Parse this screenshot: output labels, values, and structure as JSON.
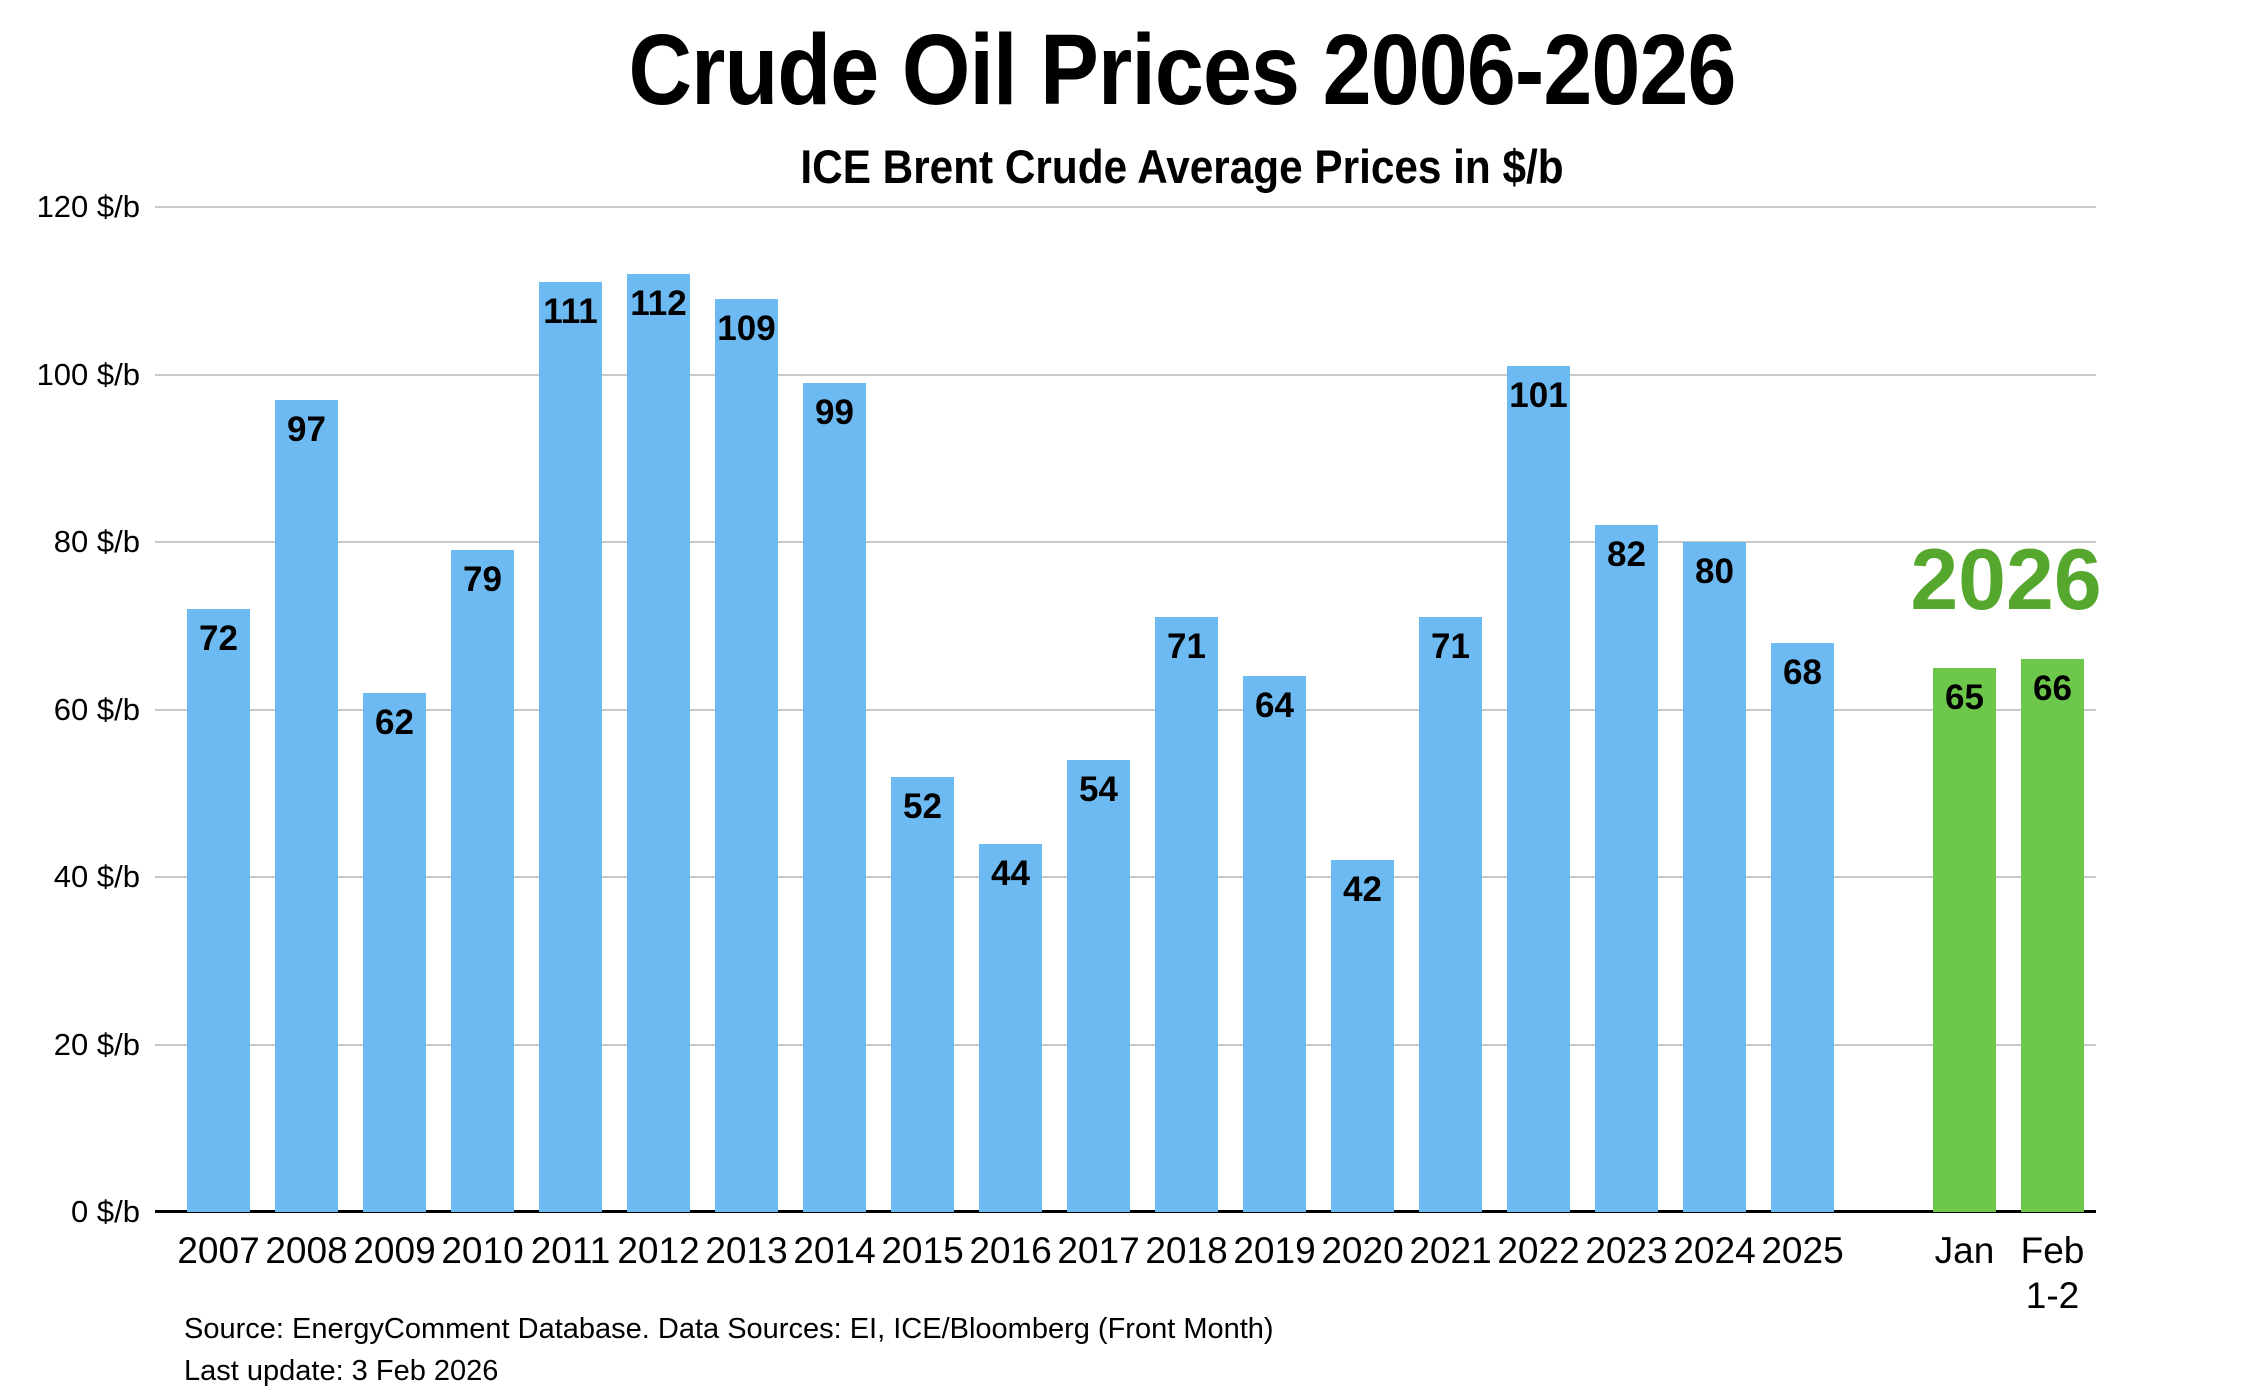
{
  "page": {
    "title": "Crude Oil Prices 2006-2026",
    "subtitle": "ICE Brent Crude Average Prices in $/b",
    "source_line1": "Source: EnergyComment Database. Data Sources: EI, ICE/Bloomberg (Front Month)",
    "source_line2": "Last update: 3 Feb 2026"
  },
  "colors": {
    "history_bar": "#6DBAF2",
    "forecast_bar": "#6DC74A",
    "forecast_annotation": "#55A72E",
    "gridline": "#C9C9C9",
    "axis_line": "#000000",
    "text": "#000000",
    "background": "#FFFFFF"
  },
  "chart_data": {
    "type": "bar",
    "title": "Crude Oil Prices 2006-2026",
    "subtitle": "ICE Brent Crude Average Prices in $/b",
    "unit": "$/b",
    "ylim": [
      0,
      120
    ],
    "y_ticks": [
      0,
      20,
      40,
      60,
      80,
      100,
      120
    ],
    "y_tick_labels": [
      "0 $/b",
      "20 $/b",
      "40 $/b",
      "60 $/b",
      "80 $/b",
      "100 $/b",
      "120 $/b"
    ],
    "grid": "horizontal",
    "legend": "none",
    "value_labels": "inside-top",
    "series": [
      {
        "name": "history",
        "color": "#6DBAF2",
        "points": [
          {
            "label": "2007",
            "value": 72
          },
          {
            "label": "2008",
            "value": 97
          },
          {
            "label": "2009",
            "value": 62
          },
          {
            "label": "2010",
            "value": 79
          },
          {
            "label": "2011",
            "value": 111
          },
          {
            "label": "2012",
            "value": 112
          },
          {
            "label": "2013",
            "value": 109
          },
          {
            "label": "2014",
            "value": 99
          },
          {
            "label": "2015",
            "value": 52
          },
          {
            "label": "2016",
            "value": 44
          },
          {
            "label": "2017",
            "value": 54
          },
          {
            "label": "2018",
            "value": 71
          },
          {
            "label": "2019",
            "value": 64
          },
          {
            "label": "2020",
            "value": 42
          },
          {
            "label": "2021",
            "value": 71
          },
          {
            "label": "2022",
            "value": 101
          },
          {
            "label": "2023",
            "value": 82
          },
          {
            "label": "2024",
            "value": 80
          },
          {
            "label": "2025",
            "value": 68
          }
        ]
      },
      {
        "name": "forecast-2026",
        "color": "#6DC74A",
        "points": [
          {
            "label": "Jan",
            "value": 65
          },
          {
            "label": "Feb",
            "sublabel": "1-2",
            "value": 66
          }
        ]
      }
    ],
    "annotation": {
      "text": "2026",
      "color": "#55A72E"
    }
  }
}
